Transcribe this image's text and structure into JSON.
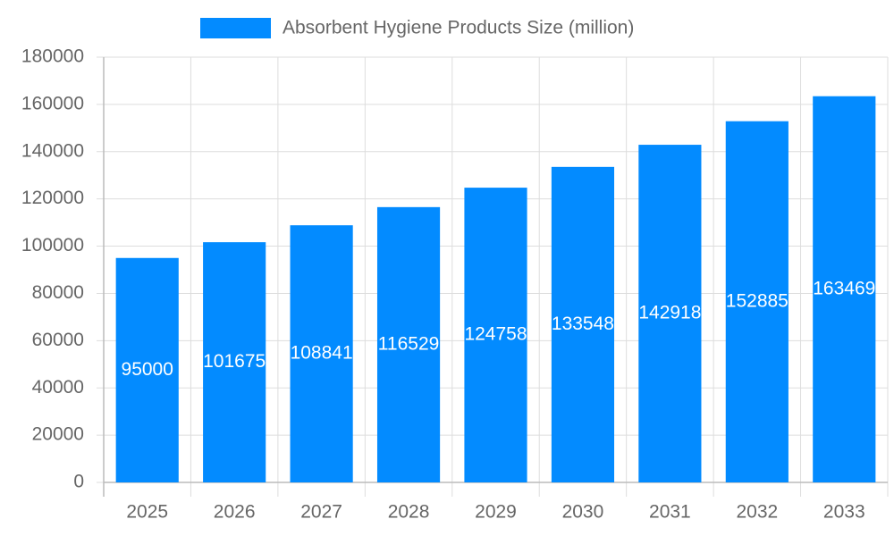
{
  "chart_data": {
    "type": "bar",
    "categories": [
      "2025",
      "2026",
      "2027",
      "2028",
      "2029",
      "2030",
      "2031",
      "2032",
      "2033"
    ],
    "series": [
      {
        "name": "Absorbent Hygiene Products Size (million)",
        "color": "#038bff",
        "values": [
          95000,
          101675,
          108841,
          116529,
          124758,
          133548,
          142918,
          152885,
          163469
        ]
      }
    ],
    "ylim": [
      0,
      180000
    ],
    "yticks": [
      0,
      20000,
      40000,
      60000,
      80000,
      100000,
      120000,
      140000,
      160000,
      180000
    ],
    "grid": true,
    "legend": "top"
  }
}
